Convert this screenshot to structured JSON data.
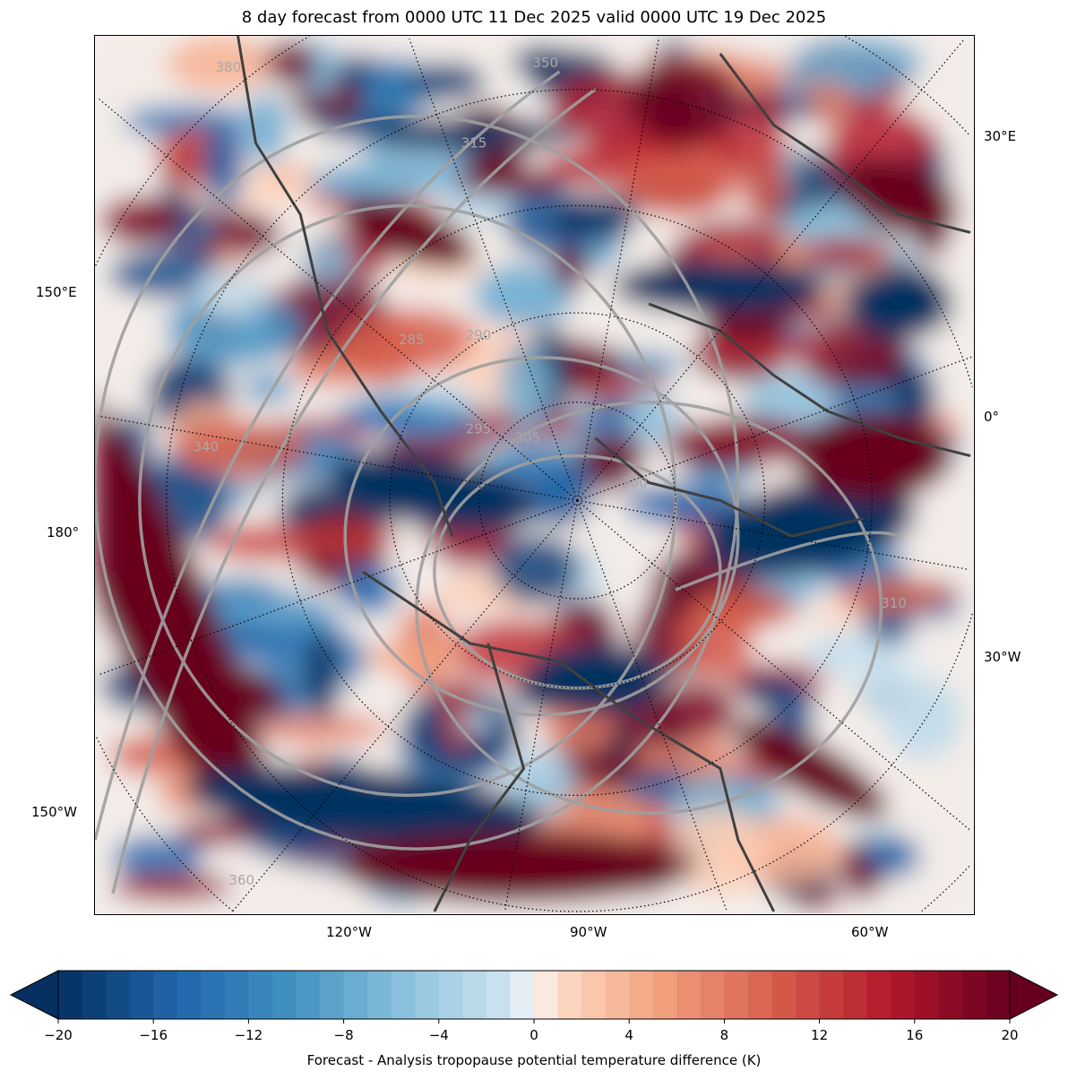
{
  "title": "8 day forecast from 0000 UTC 11 Dec 2025 valid 0000 UTC 19 Dec 2025",
  "longitude_labels": {
    "right": [
      "30°E",
      "0°",
      "30°W"
    ],
    "left": [
      "150°E",
      "180°",
      "150°W"
    ],
    "bottom": [
      "120°W",
      "90°W",
      "60°W"
    ]
  },
  "contour_labels": [
    "380",
    "350",
    "315",
    "290",
    "295",
    "300",
    "305",
    "285",
    "340",
    "360",
    "310"
  ],
  "colorbar": {
    "label": "Forecast - Analysis tropopause potential temperature difference (K)",
    "ticks": [
      "−20",
      "−16",
      "−12",
      "−8",
      "−4",
      "0",
      "4",
      "8",
      "12",
      "16",
      "20"
    ],
    "min": -20,
    "max": 20,
    "step": 1,
    "colormap": "RdBu_r",
    "extend": "both"
  },
  "colors": {
    "contour": "#a0a0a0",
    "coastline": "#404040",
    "cold": "#08306b",
    "warm": "#67001f"
  }
}
